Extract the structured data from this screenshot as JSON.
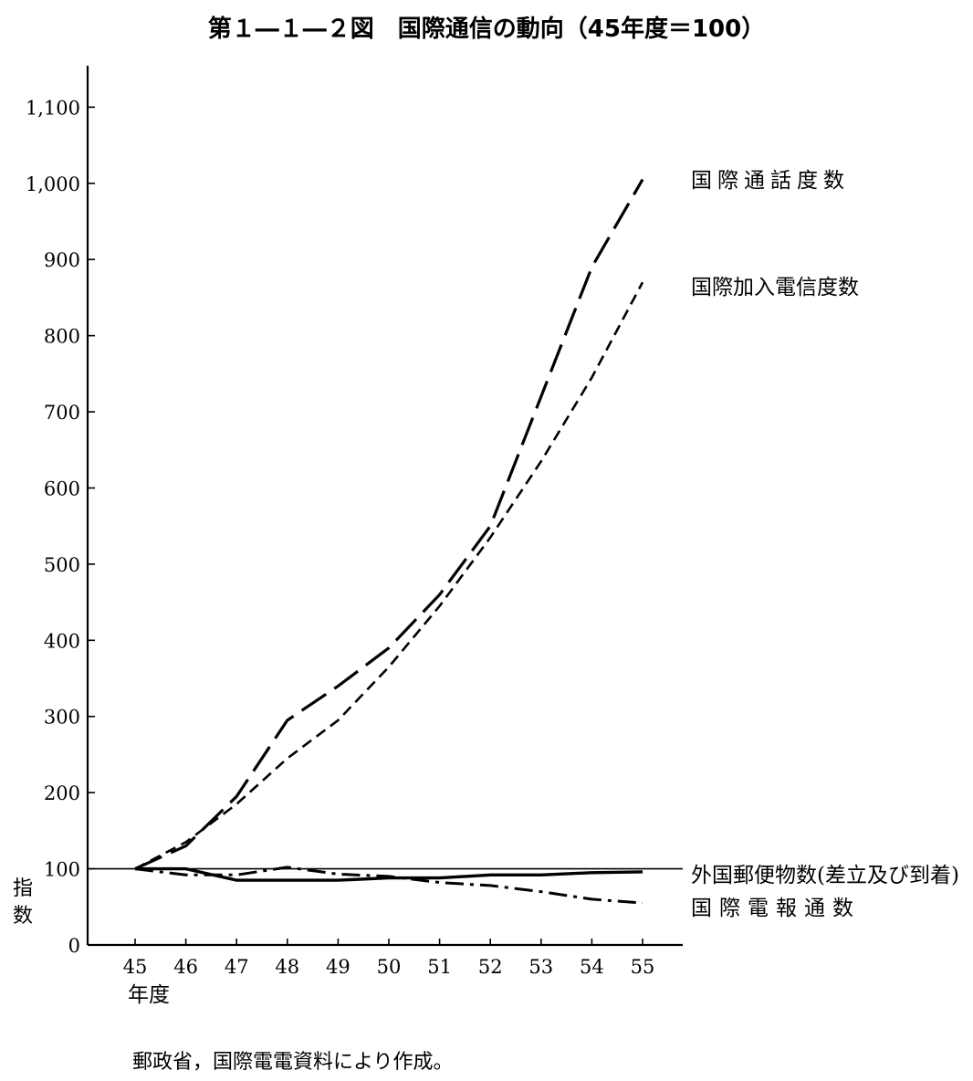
{
  "chart_data": {
    "type": "line",
    "title": "第１―１―２図　国際通信の動向（45年度＝100）",
    "ylabel": "指数",
    "xlabel": "年度",
    "ylim": [
      0,
      1150
    ],
    "yticks": [
      {
        "value": 0,
        "label": "0"
      },
      {
        "value": 100,
        "label": "100"
      },
      {
        "value": 200,
        "label": "200"
      },
      {
        "value": 300,
        "label": "300"
      },
      {
        "value": 400,
        "label": "400"
      },
      {
        "value": 500,
        "label": "500"
      },
      {
        "value": 600,
        "label": "600"
      },
      {
        "value": 700,
        "label": "700"
      },
      {
        "value": 800,
        "label": "800"
      },
      {
        "value": 900,
        "label": "900"
      },
      {
        "value": 1000,
        "label": "1,000"
      },
      {
        "value": 1100,
        "label": "1,100"
      }
    ],
    "categories": [
      "45",
      "46",
      "47",
      "48",
      "49",
      "50",
      "51",
      "52",
      "53",
      "54",
      "55"
    ],
    "reference_line": 100,
    "series": [
      {
        "name": "国際通話度数",
        "style": "long-dash",
        "values": [
          100,
          130,
          195,
          295,
          340,
          390,
          460,
          550,
          720,
          890,
          1005
        ]
      },
      {
        "name": "国際加入電信度数",
        "style": "short-dash",
        "values": [
          100,
          135,
          185,
          245,
          295,
          365,
          445,
          535,
          635,
          745,
          870
        ]
      },
      {
        "name": "外国郵便物数(差立及び到着)",
        "style": "solid",
        "values": [
          100,
          100,
          85,
          85,
          85,
          88,
          88,
          92,
          92,
          95,
          96
        ]
      },
      {
        "name": "国際電報通数",
        "style": "dash-dot",
        "values": [
          100,
          92,
          92,
          102,
          93,
          90,
          82,
          78,
          70,
          60,
          55
        ]
      }
    ],
    "grid": false
  },
  "source": "郵政省，国際電電資料により作成。"
}
